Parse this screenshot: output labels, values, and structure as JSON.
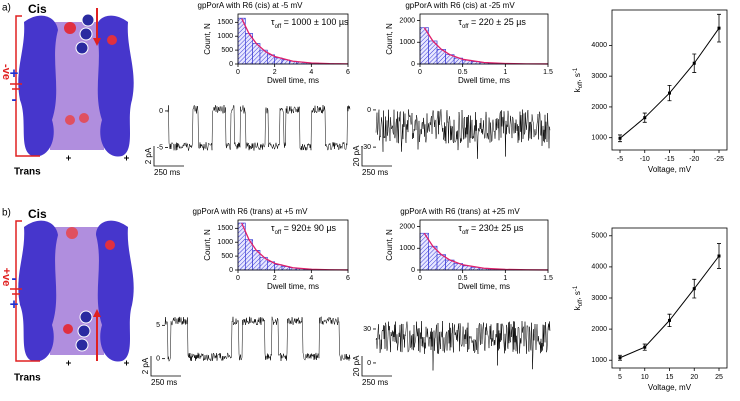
{
  "figure": {
    "panels": [
      {
        "label": "a)",
        "top": "Cis",
        "bottom": "Trans",
        "bias": "-ve",
        "upper_sign": "+",
        "lower_sign": "-"
      },
      {
        "label": "b)",
        "top": "Cis",
        "bottom": "Trans",
        "bias": "+ve",
        "upper_sign": "-",
        "lower_sign": "+"
      }
    ]
  },
  "chart_data": [
    {
      "type": "histogram",
      "title": "gpPorA with R6 (cis) at -5 mV",
      "xlabel": "Dwell time, ms",
      "ylabel": "Count, N",
      "annotation": {
        "symbol": "τ",
        "sub": "off",
        "text": " = 1000 ± 100 µs"
      },
      "bins": [
        0,
        0.4,
        0.8,
        1.2,
        1.6,
        2,
        2.4,
        2.8,
        3.2,
        3.6,
        4,
        4.4,
        4.8,
        5.2,
        5.6,
        6
      ],
      "values": [
        1650,
        1100,
        740,
        500,
        330,
        220,
        150,
        100,
        65,
        45,
        30,
        20,
        13,
        9,
        6
      ],
      "fit": {
        "x": [
          0.2,
          0.6,
          1,
          1.5,
          2,
          3,
          4,
          5,
          6
        ],
        "values": [
          1637,
          1098,
          736,
          446,
          271,
          100,
          37,
          13,
          5
        ]
      },
      "color": "#2b2bd0",
      "fit_color": "#e0206a",
      "xlim": [
        0,
        6
      ],
      "xticks": [
        0,
        2,
        4,
        6
      ],
      "ylim": [
        0,
        1800
      ],
      "yticks": [
        0,
        500,
        1000,
        1500
      ]
    },
    {
      "type": "histogram",
      "title": "gpPorA with R6 (cis) at -25 mV",
      "xlabel": "Dwell time, ms",
      "ylabel": "Count, N",
      "annotation": {
        "symbol": "τ",
        "sub": "off",
        "text": " = 220  ± 25 µs"
      },
      "bins": [
        0,
        0.1,
        0.2,
        0.3,
        0.4,
        0.5,
        0.6,
        0.7,
        0.8,
        0.9,
        1,
        1.1,
        1.2,
        1.3,
        1.4,
        1.5
      ],
      "values": [
        1670,
        1060,
        675,
        430,
        272,
        173,
        110,
        70,
        44,
        28,
        18,
        11,
        7,
        5,
        3
      ],
      "fit": {
        "x": [
          0.05,
          0.15,
          0.25,
          0.35,
          0.5,
          0.75,
          1,
          1.25,
          1.5
        ],
        "values": [
          1673,
          1062,
          675,
          428,
          216,
          69,
          22,
          7,
          2
        ]
      },
      "color": "#2b2bd0",
      "fit_color": "#e0206a",
      "xlim": [
        0,
        1.5
      ],
      "xticks": [
        0,
        0.5,
        1,
        1.5
      ],
      "ylim": [
        0,
        2300
      ],
      "yticks": [
        0,
        1000,
        2000
      ]
    },
    {
      "type": "line",
      "xlabel": "Voltage, mV",
      "ylabel": {
        "base": "k",
        "sub": "off",
        "text": ", s",
        "sup": "-1"
      },
      "categories": [
        "-5",
        "-10",
        "-15",
        "-20",
        "-25"
      ],
      "values": [
        980,
        1650,
        2450,
        3420,
        4560
      ],
      "errors": [
        110,
        150,
        250,
        300,
        450
      ],
      "color": "#000000",
      "ylim": [
        600,
        5150
      ],
      "yticks": [
        1000,
        2000,
        3000,
        4000
      ]
    },
    {
      "type": "histogram",
      "title": "gpPorA with R6 (trans) at +5 mV",
      "xlabel": "Dwell time, ms",
      "ylabel": "Count, N",
      "annotation": {
        "symbol": "τ",
        "sub": "off",
        "text": " = 920± 90 µs"
      },
      "bins": [
        0,
        0.4,
        0.8,
        1.2,
        1.6,
        2,
        2.4,
        2.8,
        3.2,
        3.6,
        4,
        4.4,
        4.8,
        5.2,
        5.6,
        6
      ],
      "values": [
        1691,
        1093,
        708,
        458,
        296,
        192,
        124,
        80,
        52,
        34,
        22,
        14,
        9,
        6,
        4
      ],
      "fit": {
        "x": [
          0.2,
          0.6,
          1,
          1.5,
          2,
          3,
          4,
          5,
          6
        ],
        "values": [
          1691,
          1093,
          708,
          411,
          239,
          80,
          27,
          9,
          3
        ]
      },
      "color": "#2b2bd0",
      "fit_color": "#e0206a",
      "xlim": [
        0,
        6
      ],
      "xticks": [
        0,
        2,
        4,
        6
      ],
      "ylim": [
        0,
        1800
      ],
      "yticks": [
        0,
        500,
        1000,
        1500
      ]
    },
    {
      "type": "histogram",
      "title": "gpPorA with R6 (trans) at +25 mV",
      "xlabel": "Dwell time, ms",
      "ylabel": "Count, N",
      "annotation": {
        "symbol": "τ",
        "sub": "off",
        "text": " = 230± 25 µs"
      },
      "bins": [
        0,
        0.1,
        0.2,
        0.3,
        0.4,
        0.5,
        0.6,
        0.7,
        0.8,
        0.9,
        1,
        1.1,
        1.2,
        1.3,
        1.4,
        1.5
      ],
      "values": [
        1692,
        1095,
        708,
        458,
        297,
        192,
        124,
        81,
        52,
        34,
        22,
        14,
        9,
        6,
        4
      ],
      "fit": {
        "x": [
          0.05,
          0.15,
          0.25,
          0.35,
          0.5,
          0.75,
          1,
          1.25,
          1.5
        ],
        "values": [
          1692,
          1095,
          708,
          458,
          239,
          81,
          27,
          9,
          3
        ]
      },
      "color": "#2b2bd0",
      "fit_color": "#e0206a",
      "xlim": [
        0,
        1.5
      ],
      "xticks": [
        0,
        0.5,
        1,
        1.5
      ],
      "ylim": [
        0,
        2300
      ],
      "yticks": [
        0,
        1000,
        2000
      ]
    },
    {
      "type": "line",
      "xlabel": "Voltage, mV",
      "ylabel": {
        "base": "k",
        "sub": "off",
        "text": ", s",
        "sup": "-1"
      },
      "categories": [
        "5",
        "10",
        "15",
        "20",
        "25"
      ],
      "values": [
        1080,
        1420,
        2280,
        3300,
        4350
      ],
      "errors": [
        80,
        100,
        200,
        300,
        400
      ],
      "color": "#000000",
      "ylim": [
        750,
        5250
      ],
      "yticks": [
        1000,
        2000,
        3000,
        4000,
        5000
      ]
    },
    {
      "type": "trace",
      "ylim": [
        -7,
        1.5
      ],
      "yticks": [
        0,
        -5
      ],
      "scale_y": "2 pA",
      "scale_x": "250 ms"
    },
    {
      "type": "trace",
      "ylim": [
        -42,
        8
      ],
      "yticks": [
        0,
        -30
      ],
      "scale_y": "20 pA",
      "scale_x": "250 ms"
    },
    {
      "type": "trace",
      "ylim": [
        -2,
        7
      ],
      "yticks": [
        5,
        0
      ],
      "scale_y": "2 pA",
      "scale_x": "250 ms"
    },
    {
      "type": "trace",
      "ylim": [
        -8,
        45
      ],
      "yticks": [
        30,
        0
      ],
      "scale_y": "20 pA",
      "scale_x": "250 ms"
    }
  ]
}
